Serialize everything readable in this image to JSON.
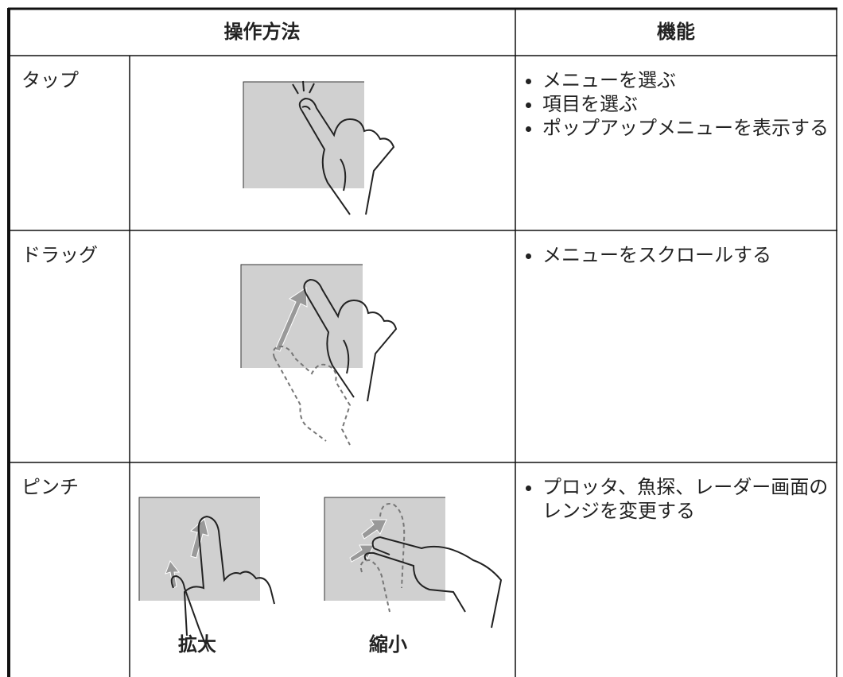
{
  "table": {
    "headers": [
      "操作方法",
      "機能"
    ],
    "rows": [
      {
        "gesture": "タップ",
        "functions": [
          "メニューを選ぶ",
          "項目を選ぶ",
          "ポップアップメニューを表示する"
        ]
      },
      {
        "gesture": "ドラッグ",
        "functions": [
          "メニューをスクロールする"
        ]
      },
      {
        "gesture": "ピンチ",
        "captions": [
          "拡大",
          "縮小"
        ],
        "functions": [
          "プロッタ、魚探、レーダー画面のレンジを変更する"
        ]
      }
    ]
  }
}
